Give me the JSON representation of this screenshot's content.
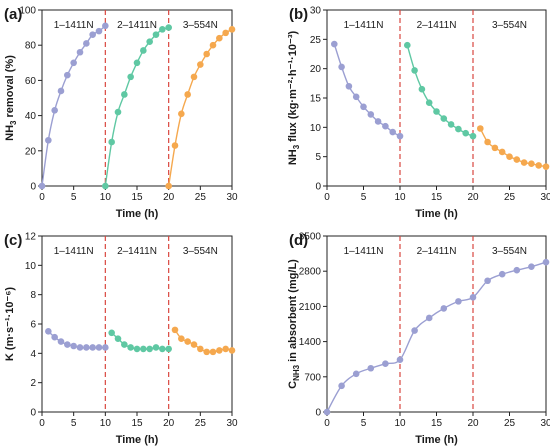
{
  "chart_data": [
    {
      "panel_label": "(a)",
      "type": "scatter",
      "xlabel": "Time (h)",
      "ylabel_main": "NH",
      "ylabel_sub": "3",
      "ylabel_rest": " removal (%)",
      "xlim": [
        0,
        30
      ],
      "ylim": [
        0,
        100
      ],
      "xticks": [
        "0",
        "5",
        "10",
        "15",
        "20",
        "25",
        "30"
      ],
      "yticks": [
        "0",
        "20",
        "40",
        "60",
        "80",
        "100"
      ],
      "segment_labels": [
        "1–1411N",
        "2–1411N",
        "3–554N"
      ],
      "dividers": [
        10,
        20
      ],
      "series": [
        {
          "color": "#9b9fd2",
          "x": [
            0,
            1,
            2,
            3,
            4,
            5,
            6,
            7,
            8,
            9,
            10
          ],
          "y": [
            0,
            26,
            43,
            54,
            63,
            70,
            76,
            81,
            86,
            88,
            91
          ]
        },
        {
          "color": "#5fc8a3",
          "x": [
            10,
            11,
            12,
            13,
            14,
            15,
            16,
            17,
            18,
            19,
            20
          ],
          "y": [
            0,
            25,
            42,
            52,
            62,
            70,
            77,
            82,
            86,
            89,
            90
          ]
        },
        {
          "color": "#f5a84e",
          "x": [
            20,
            21,
            22,
            23,
            24,
            25,
            26,
            27,
            28,
            29,
            30
          ],
          "y": [
            0,
            23,
            41,
            52,
            62,
            69,
            75,
            80,
            84,
            87,
            89
          ]
        }
      ]
    },
    {
      "panel_label": "(b)",
      "type": "scatter",
      "xlabel": "Time (h)",
      "ylabel_main": "NH",
      "ylabel_sub": "3",
      "ylabel_rest": " flux (kg·m⁻²·h⁻¹·10⁻³)",
      "xlim": [
        0,
        30
      ],
      "ylim": [
        0,
        30
      ],
      "xticks": [
        "0",
        "5",
        "10",
        "15",
        "20",
        "25",
        "30"
      ],
      "yticks": [
        "0",
        "5",
        "10",
        "15",
        "20",
        "25",
        "30"
      ],
      "segment_labels": [
        "1–1411N",
        "2–1411N",
        "3–554N"
      ],
      "dividers": [
        10,
        20
      ],
      "series": [
        {
          "color": "#9b9fd2",
          "x": [
            1,
            2,
            3,
            4,
            5,
            6,
            7,
            8,
            9,
            10
          ],
          "y": [
            24.2,
            20.3,
            17.0,
            15.2,
            13.5,
            12.2,
            11.0,
            10.2,
            9.2,
            8.5
          ]
        },
        {
          "color": "#5fc8a3",
          "x": [
            11,
            12,
            13,
            14,
            15,
            16,
            17,
            18,
            19,
            20
          ],
          "y": [
            24.0,
            19.7,
            16.5,
            14.2,
            12.7,
            11.5,
            10.5,
            9.7,
            9.0,
            8.5
          ]
        },
        {
          "color": "#f5a84e",
          "x": [
            21,
            22,
            23,
            24,
            25,
            26,
            27,
            28,
            29,
            30
          ],
          "y": [
            9.8,
            7.5,
            6.5,
            5.8,
            5.0,
            4.5,
            4.0,
            3.8,
            3.5,
            3.3
          ]
        }
      ]
    },
    {
      "panel_label": "(c)",
      "type": "scatter",
      "xlabel": "Time (h)",
      "ylabel_main": "K (m·s⁻¹·10⁻⁶)",
      "ylabel_sub": "",
      "ylabel_rest": "",
      "xlim": [
        0,
        30
      ],
      "ylim": [
        0,
        12
      ],
      "xticks": [
        "0",
        "5",
        "10",
        "15",
        "20",
        "25",
        "30"
      ],
      "yticks": [
        "0",
        "2",
        "4",
        "6",
        "8",
        "10",
        "12"
      ],
      "segment_labels": [
        "1–1411N",
        "2–1411N",
        "3–554N"
      ],
      "dividers": [
        10,
        20
      ],
      "series": [
        {
          "color": "#9b9fd2",
          "x": [
            1,
            2,
            3,
            4,
            5,
            6,
            7,
            8,
            9,
            10
          ],
          "y": [
            5.5,
            5.1,
            4.8,
            4.6,
            4.5,
            4.4,
            4.4,
            4.4,
            4.4,
            4.4
          ]
        },
        {
          "color": "#5fc8a3",
          "x": [
            11,
            12,
            13,
            14,
            15,
            16,
            17,
            18,
            19,
            20
          ],
          "y": [
            5.4,
            5.0,
            4.6,
            4.4,
            4.3,
            4.3,
            4.3,
            4.4,
            4.3,
            4.3
          ]
        },
        {
          "color": "#f5a84e",
          "x": [
            21,
            22,
            23,
            24,
            25,
            26,
            27,
            28,
            29,
            30
          ],
          "y": [
            5.6,
            5.0,
            4.8,
            4.6,
            4.3,
            4.1,
            4.1,
            4.2,
            4.3,
            4.2
          ]
        }
      ]
    },
    {
      "panel_label": "(d)",
      "type": "scatter",
      "xlabel": "Time (h)",
      "ylabel_main": "C",
      "ylabel_sub": "NH3",
      "ylabel_rest": " in absorbent (mg/L)",
      "xlim": [
        0,
        30
      ],
      "ylim": [
        0,
        3500
      ],
      "xticks": [
        "0",
        "5",
        "10",
        "15",
        "20",
        "25",
        "30"
      ],
      "yticks": [
        "0",
        "700",
        "1400",
        "2100",
        "2800",
        "3500"
      ],
      "segment_labels": [
        "1–1411N",
        "2–1411N",
        "3–554N"
      ],
      "dividers": [
        10,
        20
      ],
      "series": [
        {
          "color": "#9b9fd2",
          "x": [
            0,
            2,
            4,
            6,
            8,
            10,
            12,
            14,
            16,
            18,
            20,
            22,
            24,
            26,
            28,
            30
          ],
          "y": [
            0,
            520,
            760,
            870,
            960,
            1040,
            1620,
            1870,
            2060,
            2200,
            2280,
            2610,
            2740,
            2820,
            2890,
            2980
          ]
        }
      ]
    }
  ]
}
